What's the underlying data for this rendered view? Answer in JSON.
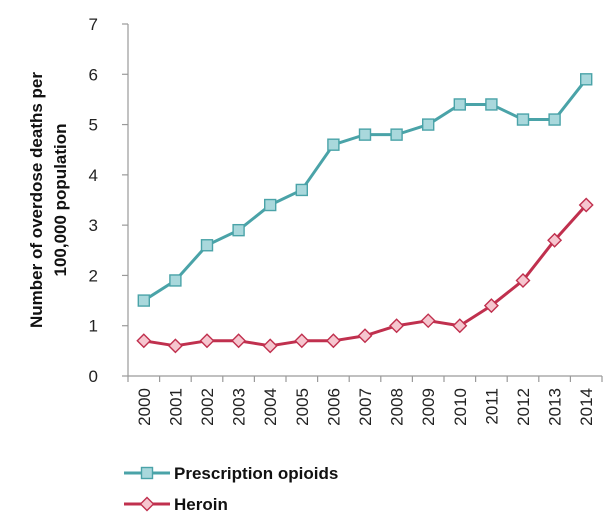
{
  "chart_data": {
    "type": "line",
    "title": "",
    "xlabel": "",
    "ylabel": [
      "Number of overdose deaths per",
      "100,000 population"
    ],
    "ylim": [
      0,
      7
    ],
    "yticks": [
      0,
      1,
      2,
      3,
      4,
      5,
      6,
      7
    ],
    "grid": false,
    "legend_position": "bottom",
    "categories": [
      "2000",
      "2001",
      "2002",
      "2003",
      "2004",
      "2005",
      "2006",
      "2007",
      "2008",
      "2009",
      "2010",
      "2011",
      "2012",
      "2013",
      "2014"
    ],
    "series": [
      {
        "name": "Prescription opioids",
        "color": "#4aa3a8",
        "marker_fill": "#a9d8dc",
        "marker": "square",
        "values": [
          1.5,
          1.9,
          2.6,
          2.9,
          3.4,
          3.7,
          4.6,
          4.8,
          4.8,
          5.0,
          5.4,
          5.4,
          5.1,
          5.1,
          5.9
        ]
      },
      {
        "name": "Heroin",
        "color": "#c0304e",
        "marker_fill": "#f6c6cf",
        "marker": "diamond",
        "values": [
          0.7,
          0.6,
          0.7,
          0.7,
          0.6,
          0.7,
          0.7,
          0.8,
          1.0,
          1.1,
          1.0,
          1.4,
          1.9,
          2.7,
          3.4
        ]
      }
    ]
  }
}
